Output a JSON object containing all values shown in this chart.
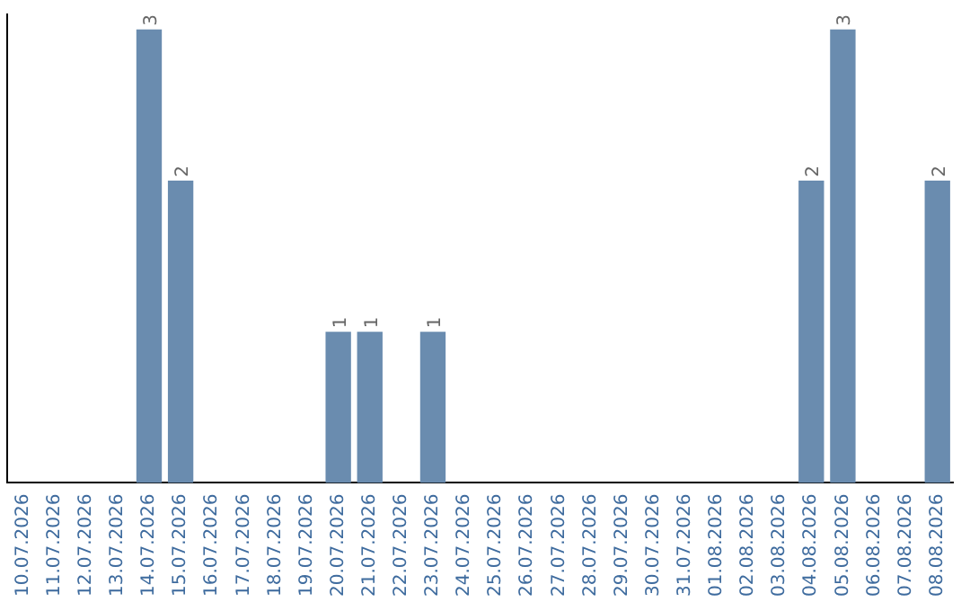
{
  "chart_data": {
    "type": "bar",
    "categories": [
      "10.07.2026",
      "11.07.2026",
      "12.07.2026",
      "13.07.2026",
      "14.07.2026",
      "15.07.2026",
      "16.07.2026",
      "17.07.2026",
      "18.07.2026",
      "19.07.2026",
      "20.07.2026",
      "21.07.2026",
      "22.07.2026",
      "23.07.2026",
      "24.07.2026",
      "25.07.2026",
      "26.07.2026",
      "27.07.2026",
      "28.07.2026",
      "29.07.2026",
      "30.07.2026",
      "31.07.2026",
      "01.08.2026",
      "02.08.2026",
      "03.08.2026",
      "04.08.2026",
      "05.08.2026",
      "06.08.2026",
      "07.08.2026",
      "08.08.2026"
    ],
    "values": [
      0,
      0,
      0,
      0,
      3,
      2,
      0,
      0,
      0,
      0,
      1,
      1,
      0,
      1,
      0,
      0,
      0,
      0,
      0,
      0,
      0,
      0,
      0,
      0,
      0,
      2,
      3,
      0,
      0,
      2
    ],
    "value_labels": [
      null,
      null,
      null,
      null,
      "3",
      "2",
      null,
      null,
      null,
      null,
      "1",
      "1",
      null,
      "1",
      null,
      null,
      null,
      null,
      null,
      null,
      null,
      null,
      null,
      null,
      null,
      "2",
      "3",
      null,
      null,
      "2"
    ],
    "color": "#6a8caf",
    "ylim": [
      0,
      3.1
    ],
    "tick_labels": "x",
    "grid": false,
    "legend": false
  }
}
